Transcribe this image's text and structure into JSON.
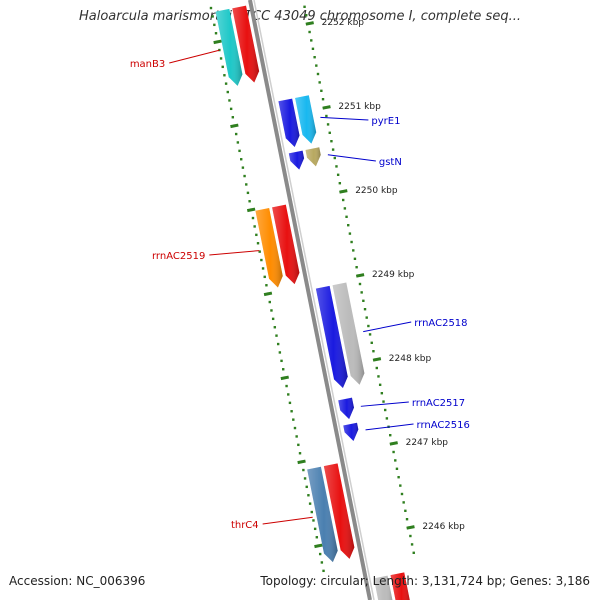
{
  "title": "Haloarcula marismortui ATCC 43049 chromosome I, complete seq...",
  "accession": "Accession: NC_006396",
  "topology": "Topology: circular; Length: 3,131,724 bp; Genes: 3,186",
  "colors": {
    "backbone": "#8a8a8a",
    "tick": "#2f7f1f",
    "label_forward": "#cc0000",
    "label_reverse": "#0000cc"
  },
  "kbp_ticks": [
    {
      "kbp": 2252,
      "label": "2252 kbp"
    },
    {
      "kbp": 2251,
      "label": "2251 kbp"
    },
    {
      "kbp": 2250,
      "label": "2250 kbp"
    },
    {
      "kbp": 2249,
      "label": "2249 kbp"
    },
    {
      "kbp": 2248,
      "label": "2248 kbp"
    },
    {
      "kbp": 2247,
      "label": "2247 kbp"
    },
    {
      "kbp": 2246,
      "label": "2246 kbp"
    }
  ],
  "features": [
    {
      "name": "manB3",
      "side": "left",
      "label_color": "#cc0000",
      "colors": [
        "#1ec8c8",
        "#e81010"
      ],
      "start_kbp": 2252.35,
      "end_kbp": 2251.45
    },
    {
      "name": "pyrE1",
      "side": "right",
      "label_color": "#0000cc",
      "colors": [
        "#1a1ae0",
        "#18b8f0"
      ],
      "start_kbp": 2251.18,
      "end_kbp": 2250.62
    },
    {
      "name": "gstN",
      "side": "right",
      "label_color": "#0000cc",
      "colors": [
        "#1a1ae0",
        "#b8a860"
      ],
      "start_kbp": 2250.56,
      "end_kbp": 2250.35
    },
    {
      "name": "rrnAC2519",
      "side": "left",
      "label_color": "#cc0000",
      "colors": [
        "#ff8c00",
        "#e81010"
      ],
      "start_kbp": 2249.98,
      "end_kbp": 2249.05
    },
    {
      "name": "rrnAC2518",
      "side": "right",
      "label_color": "#0000cc",
      "colors": [
        "#1a1ae0",
        "#bbbbbb"
      ],
      "start_kbp": 2248.95,
      "end_kbp": 2247.75
    },
    {
      "name": "rrnAC2517",
      "side": "right",
      "label_color": "#0000cc",
      "colors": [
        "#1a1ae0"
      ],
      "start_kbp": 2247.62,
      "end_kbp": 2247.38
    },
    {
      "name": "rrnAC2516",
      "side": "right",
      "label_color": "#0000cc",
      "colors": [
        "#1a1ae0"
      ],
      "start_kbp": 2247.32,
      "end_kbp": 2247.12
    },
    {
      "name": "thrC4",
      "side": "left",
      "label_color": "#cc0000",
      "colors": [
        "#4a7fb0",
        "#e81010"
      ],
      "start_kbp": 2246.9,
      "end_kbp": 2245.78
    },
    {
      "name": "",
      "side": "right",
      "label_color": "#0000cc",
      "colors": [
        "#bbbbbb",
        "#e81010"
      ],
      "start_kbp": 2245.5,
      "end_kbp": 2245.0
    }
  ]
}
